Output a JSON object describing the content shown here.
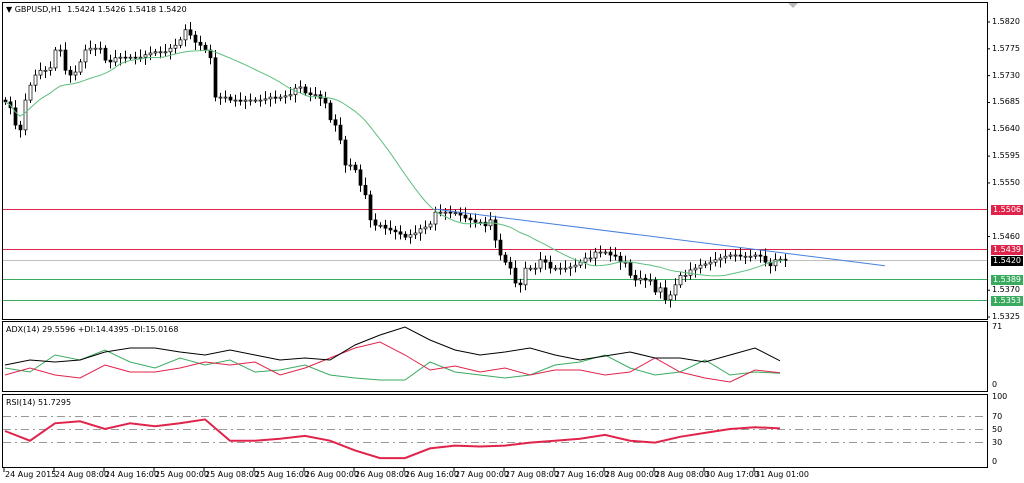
{
  "header": {
    "symbol": "GBPUSD,H1",
    "ohlc": "1.5424 1.5426 1.5418 1.5420"
  },
  "adx_label": "ADX(14) 29.5596 +DI:14.4395 -DI:15.0168",
  "rsi_label": "RSI(14) 51.7295",
  "colors": {
    "up": "#ffffff",
    "down": "#000000",
    "ma": "#5fbf7f",
    "trend": "#4a7fe0",
    "resistance": "#e0234a",
    "support": "#3aaa5f",
    "current": "#c0c0c0",
    "adx": "#000000",
    "plus_di": "#3aaa5f",
    "minus_di": "#e0234a",
    "rsi": "#e0234a"
  },
  "chart_data": {
    "type": "candlestick",
    "title": "GBPUSD,H1",
    "ylim": [
      1.5325,
      1.582
    ],
    "price_ticks": [
      "1.5820",
      "1.5775",
      "1.5730",
      "1.5685",
      "1.5640",
      "1.5595",
      "1.5550",
      "1.5460",
      "1.5370",
      "1.5325"
    ],
    "time_labels": [
      "24 Aug 2015",
      "24 Aug 08:00",
      "24 Aug 16:00",
      "25 Aug 00:00",
      "25 Aug 08:00",
      "25 Aug 16:00",
      "26 Aug 00:00",
      "26 Aug 08:00",
      "26 Aug 16:00",
      "27 Aug 00:00",
      "27 Aug 08:00",
      "27 Aug 16:00",
      "28 Aug 00:00",
      "28 Aug 08:00",
      "30 Aug 17:00",
      "31 Aug 01:00"
    ],
    "closes": [
      1.5686,
      1.5676,
      1.5647,
      1.5639,
      1.5689,
      1.5714,
      1.5731,
      1.5739,
      1.5739,
      1.5743,
      1.5773,
      1.5773,
      1.5739,
      1.5731,
      1.5736,
      1.5753,
      1.5773,
      1.5776,
      1.5776,
      1.5776,
      1.5756,
      1.5753,
      1.576,
      1.5761,
      1.576,
      1.5761,
      1.576,
      1.5761,
      1.5765,
      1.5768,
      1.577,
      1.577,
      1.577,
      1.5776,
      1.5781,
      1.579,
      1.5807,
      1.5798,
      1.5786,
      1.5781,
      1.5773,
      1.576,
      1.5694,
      1.5694,
      1.5694,
      1.5689,
      1.5689,
      1.5687,
      1.5689,
      1.5689,
      1.5689,
      1.5689,
      1.5691,
      1.5694,
      1.5692,
      1.5694,
      1.5696,
      1.5698,
      1.5709,
      1.5711,
      1.5701,
      1.5698,
      1.5698,
      1.5692,
      1.5684,
      1.5656,
      1.5647,
      1.5622,
      1.558,
      1.558,
      1.5572,
      1.5546,
      1.553,
      1.5488,
      1.5479,
      1.5479,
      1.5474,
      1.5471,
      1.5468,
      1.5464,
      1.5459,
      1.5463,
      1.5466,
      1.5473,
      1.5476,
      1.5481,
      1.5501,
      1.5501,
      1.5501,
      1.55,
      1.55,
      1.5496,
      1.5491,
      1.5488,
      1.5484,
      1.5484,
      1.5478,
      1.5488,
      1.5454,
      1.5429,
      1.5417,
      1.5407,
      1.5382,
      1.5379,
      1.5407,
      1.5407,
      1.5407,
      1.5421,
      1.5417,
      1.5407,
      1.5407,
      1.5407,
      1.5407,
      1.5409,
      1.5412,
      1.5417,
      1.5424,
      1.5424,
      1.5434,
      1.5434,
      1.5434,
      1.5429,
      1.5427,
      1.5417,
      1.5417,
      1.5395,
      1.5387,
      1.539,
      1.5387,
      1.5387,
      1.5367,
      1.5374,
      1.5354,
      1.5362,
      1.5379,
      1.5395,
      1.5395,
      1.5404,
      1.5407,
      1.5412,
      1.5414,
      1.5417,
      1.5421,
      1.5424,
      1.5427,
      1.5429,
      1.5429,
      1.5427,
      1.5427,
      1.5427,
      1.5429,
      1.5427,
      1.5417,
      1.5411,
      1.5421,
      1.5422,
      1.542
    ],
    "ma_period": 20,
    "trendline": {
      "from": {
        "bar": 86,
        "price": 1.5506
      },
      "to": {
        "bar": 176,
        "price": 1.5411
      }
    },
    "levels": [
      {
        "price": "1.5506",
        "kind": "resistance"
      },
      {
        "price": "1.5439",
        "kind": "resistance"
      },
      {
        "price": "1.5420",
        "kind": "current"
      },
      {
        "price": "1.5389",
        "kind": "support"
      },
      {
        "price": "1.5353",
        "kind": "support"
      }
    ],
    "adx": {
      "ylim": [
        0,
        71
      ],
      "ticks": [
        "71",
        "0"
      ],
      "adx": [
        24.5,
        30.6,
        28.2,
        30.6,
        40.4,
        45.3,
        45.3,
        40.4,
        36.7,
        42.8,
        36.7,
        30.6,
        33.0,
        30.6,
        49.0,
        61.2,
        71,
        55.1,
        42.8,
        36.7,
        40.4,
        45.3,
        36.7,
        30.6,
        35.5,
        40.4,
        33.0,
        33.0,
        28.2,
        36.7,
        45.3,
        29.6
      ],
      "plus_di": [
        20.8,
        15.9,
        36.7,
        30.6,
        42.8,
        28.2,
        20.8,
        33.0,
        24.5,
        30.6,
        15.9,
        18.4,
        24.5,
        12.2,
        8.6,
        6.1,
        6.1,
        28.2,
        15.9,
        12.2,
        8.6,
        12.2,
        24.5,
        28.2,
        36.7,
        20.8,
        12.2,
        15.9,
        30.6,
        12.2,
        15.9,
        14.4
      ],
      "minus_di": [
        12.2,
        20.8,
        12.2,
        8.6,
        24.5,
        15.9,
        15.9,
        20.8,
        28.2,
        24.5,
        28.2,
        12.2,
        20.8,
        33.0,
        45.3,
        52.6,
        36.7,
        18.4,
        23.3,
        15.9,
        20.8,
        12.2,
        18.4,
        18.4,
        12.2,
        15.9,
        33.0,
        15.9,
        8.6,
        3.7,
        18.4,
        15.0
      ]
    },
    "rsi": {
      "ylim": [
        0,
        100
      ],
      "ticks": [
        "100",
        "70",
        "50",
        "30",
        "0"
      ],
      "levels": [
        70,
        50,
        30
      ],
      "values": [
        47.7,
        32.8,
        59.6,
        62.6,
        50.7,
        59.6,
        55.1,
        59.6,
        65.6,
        32.8,
        32.8,
        35.8,
        40.2,
        32.8,
        17.9,
        6.0,
        6.0,
        20.9,
        25.3,
        23.8,
        25.3,
        29.8,
        32.8,
        35.8,
        41.7,
        32.8,
        29.8,
        38.7,
        44.7,
        50.7,
        53.6,
        51.7
      ]
    }
  }
}
